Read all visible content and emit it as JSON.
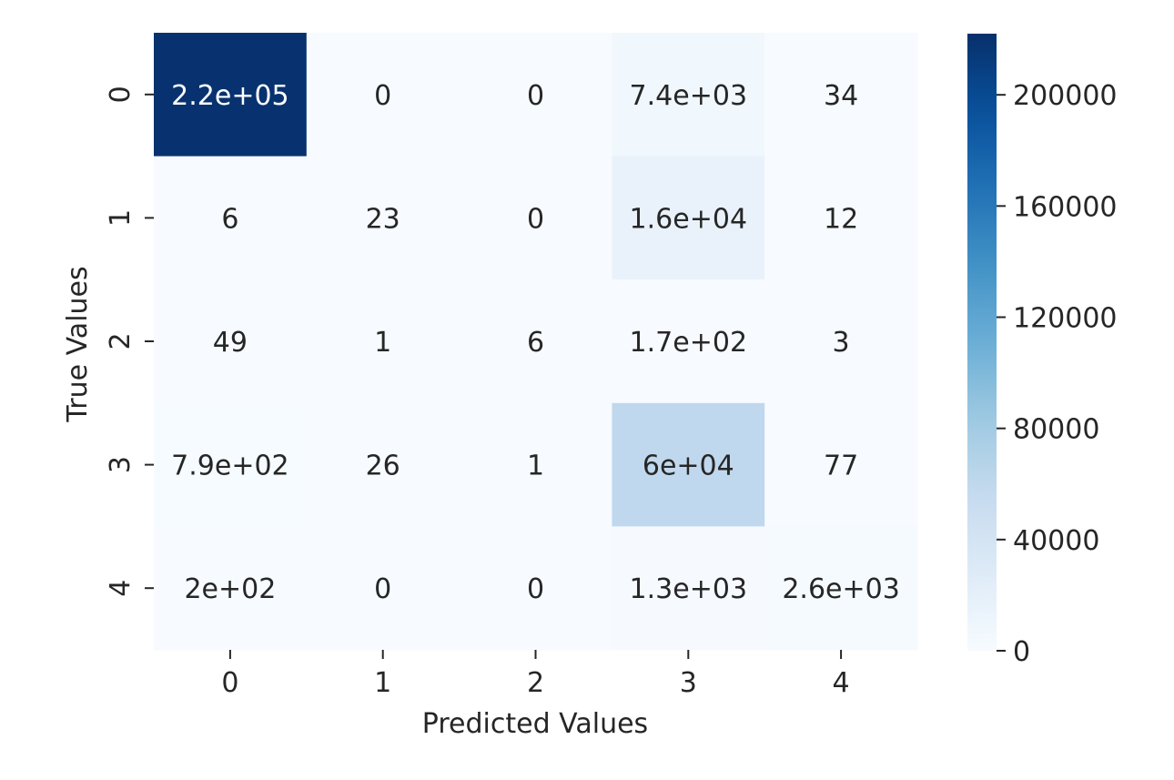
{
  "chart_data": {
    "type": "heatmap",
    "title": "",
    "xlabel": "Predicted Values",
    "ylabel": "True Values",
    "x_categories": [
      "0",
      "1",
      "2",
      "3",
      "4"
    ],
    "y_categories": [
      "0",
      "1",
      "2",
      "3",
      "4"
    ],
    "values": [
      [
        220000,
        0,
        0,
        7400,
        34
      ],
      [
        6,
        23,
        0,
        16000,
        12
      ],
      [
        49,
        1,
        6,
        170,
        3
      ],
      [
        790,
        26,
        1,
        60000,
        77
      ],
      [
        200,
        0,
        0,
        1300,
        2600
      ]
    ],
    "annotations": [
      [
        "2.2e+05",
        "0",
        "0",
        "7.4e+03",
        "34"
      ],
      [
        "6",
        "23",
        "0",
        "1.6e+04",
        "12"
      ],
      [
        "49",
        "1",
        "6",
        "1.7e+02",
        "3"
      ],
      [
        "7.9e+02",
        "26",
        "1",
        "6e+04",
        "77"
      ],
      [
        "2e+02",
        "0",
        "0",
        "1.3e+03",
        "2.6e+03"
      ]
    ],
    "colormap": "Blues",
    "colorbar": {
      "range": [
        0,
        222000
      ],
      "ticks": [
        0,
        40000,
        80000,
        120000,
        160000,
        200000
      ]
    },
    "grid": false,
    "legend": "colorbar-right"
  }
}
